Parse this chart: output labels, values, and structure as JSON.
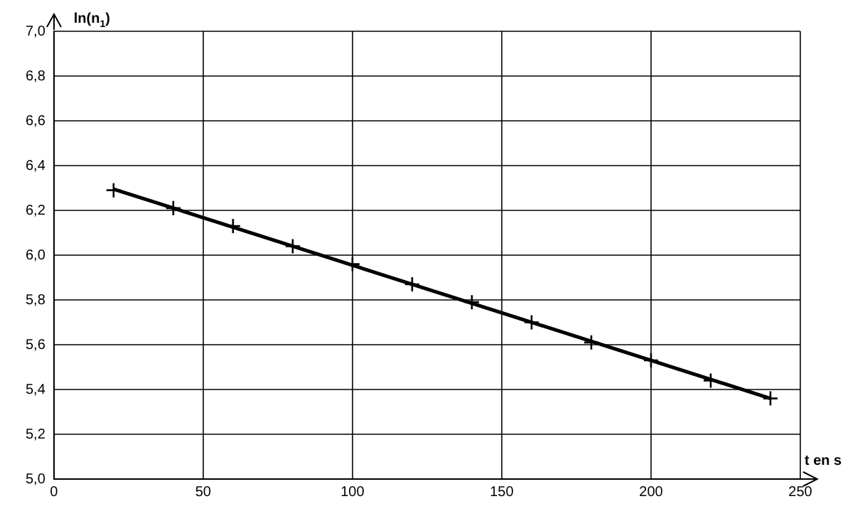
{
  "chart_data": {
    "type": "scatter",
    "xlabel": "t en s",
    "ylabel": "ln(n$_{1}$)",
    "xlim": [
      0,
      250
    ],
    "xticks": [
      0,
      50,
      100,
      150,
      200,
      250
    ],
    "ylim": [
      5,
      7
    ],
    "yticks": [
      {
        "value": 5,
        "label": "5,0"
      },
      {
        "value": 5.2,
        "label": "5,2"
      },
      {
        "value": 5.4,
        "label": "5,4"
      },
      {
        "value": 5.6,
        "label": "5,6"
      },
      {
        "value": 5.8,
        "label": "5,8"
      },
      {
        "value": 6,
        "label": "6,0"
      },
      {
        "value": 6.2,
        "label": "6,2"
      },
      {
        "value": 6.4,
        "label": "6,4"
      },
      {
        "value": 6.6,
        "label": "6,6"
      },
      {
        "value": 6.8,
        "label": "6,8"
      },
      {
        "value": 7,
        "label": "7,0"
      }
    ],
    "grid": true,
    "legend": false,
    "series": [
      {
        "type": "scatter",
        "color": "#000000",
        "marker": "cross",
        "x": [
          20,
          40,
          60,
          80,
          100,
          120,
          140,
          160,
          180,
          200,
          220,
          240
        ],
        "values": [
          6.29,
          6.21,
          6.13,
          6.04,
          5.96,
          5.87,
          5.79,
          5.7,
          5.61,
          5.53,
          5.44,
          5.36
        ]
      },
      {
        "type": "line",
        "color": "#000000",
        "marker": "none",
        "line_style": "solid",
        "x": [
          20,
          240
        ],
        "values": [
          6.295,
          5.36
        ]
      }
    ]
  }
}
